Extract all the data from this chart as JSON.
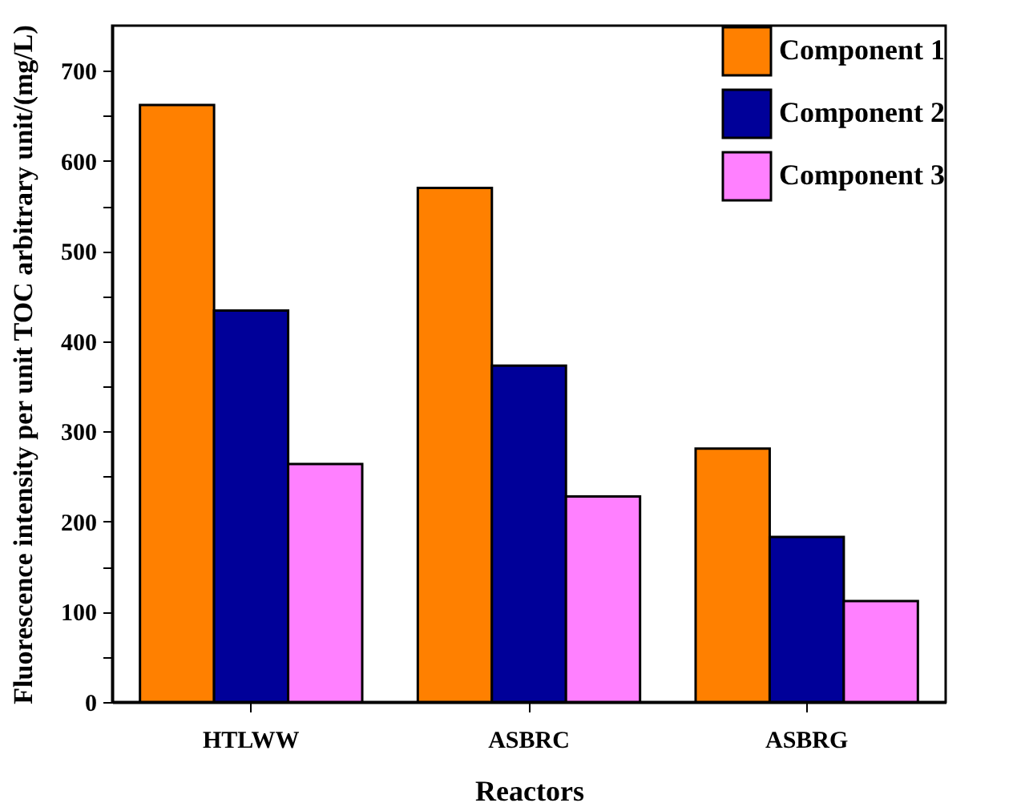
{
  "chart_data": {
    "type": "bar",
    "xlabel": "Reactors",
    "ylabel": "Fluorescence intensity per unit TOC\narbitrary unit/(mg/L)",
    "categories": [
      "HTLWW",
      "ASBRC",
      "ASBRG"
    ],
    "series": [
      {
        "name": "Component 1",
        "color": "#ff8000",
        "values": [
          662,
          570,
          281
        ]
      },
      {
        "name": "Component 2",
        "color": "#000099",
        "values": [
          434,
          373,
          183
        ]
      },
      {
        "name": "Component 3",
        "color": "#ff80ff",
        "values": [
          264,
          228,
          112
        ]
      }
    ],
    "ylim": [
      0,
      750
    ],
    "yticks": [
      0,
      {
        "value": 50,
        "label": null
      },
      100,
      {
        "value": 150,
        "label": null
      },
      200,
      {
        "value": 250,
        "label": null
      },
      300,
      {
        "value": 350,
        "label": null
      },
      400,
      {
        "value": 450,
        "label": null
      },
      500,
      {
        "value": 550,
        "label": null
      },
      600,
      {
        "value": 650,
        "label": null
      },
      700
    ],
    "legend": "top right",
    "grid": false
  }
}
